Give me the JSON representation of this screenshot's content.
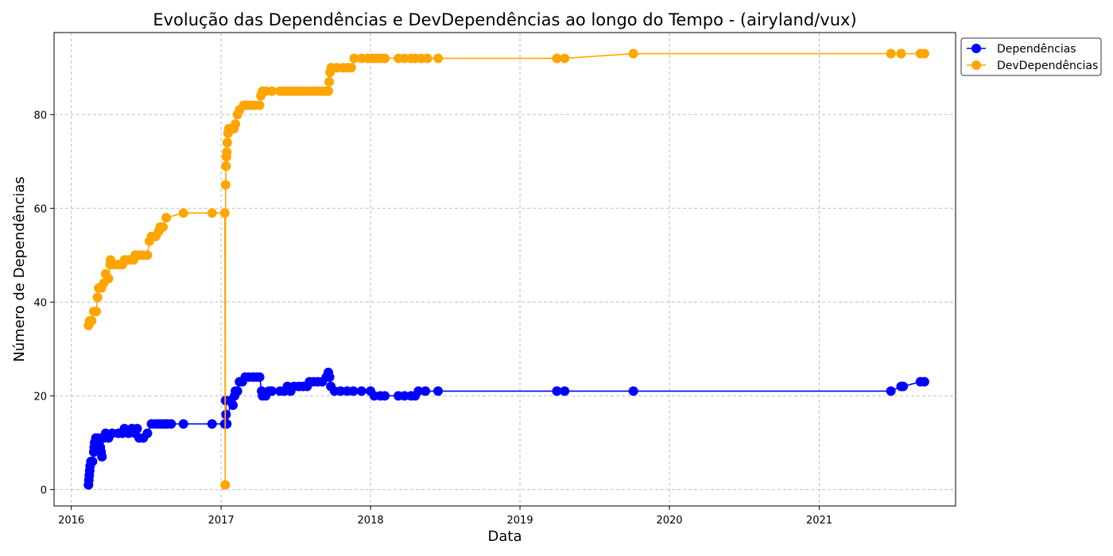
{
  "chart_data": {
    "type": "line",
    "title": "Evolução das Dependências e DevDependências ao longo do Tempo - (airyland/vux)",
    "xlabel": "Data",
    "ylabel": "Número de Dependências",
    "xlim": [
      "2015-11-20",
      "2021-11-30"
    ],
    "ylim": [
      -3.5,
      97.5
    ],
    "x_ticks": [
      "2016",
      "2017",
      "2018",
      "2019",
      "2020",
      "2021"
    ],
    "y_ticks": [
      0,
      20,
      40,
      60,
      80
    ],
    "grid": true,
    "legend": "top-right, outside plot area",
    "series": [
      {
        "name": "Dependências",
        "color": "#0000ff",
        "points": [
          [
            "2016-02-12",
            1
          ],
          [
            "2016-02-13",
            2
          ],
          [
            "2016-02-14",
            3
          ],
          [
            "2016-02-15",
            4
          ],
          [
            "2016-02-16",
            5
          ],
          [
            "2016-02-18",
            6
          ],
          [
            "2016-02-22",
            6
          ],
          [
            "2016-02-25",
            8
          ],
          [
            "2016-02-26",
            9
          ],
          [
            "2016-02-27",
            10
          ],
          [
            "2016-03-01",
            11
          ],
          [
            "2016-03-05",
            10
          ],
          [
            "2016-03-08",
            11
          ],
          [
            "2016-03-12",
            9
          ],
          [
            "2016-03-14",
            8
          ],
          [
            "2016-03-16",
            7
          ],
          [
            "2016-03-20",
            11
          ],
          [
            "2016-03-25",
            12
          ],
          [
            "2016-04-01",
            11
          ],
          [
            "2016-04-10",
            12
          ],
          [
            "2016-04-25",
            12
          ],
          [
            "2016-05-05",
            12
          ],
          [
            "2016-05-10",
            13
          ],
          [
            "2016-05-20",
            12
          ],
          [
            "2016-05-28",
            13
          ],
          [
            "2016-06-05",
            12
          ],
          [
            "2016-06-10",
            13
          ],
          [
            "2016-06-15",
            11
          ],
          [
            "2016-06-25",
            11
          ],
          [
            "2016-07-05",
            12
          ],
          [
            "2016-07-15",
            14
          ],
          [
            "2016-07-25",
            14
          ],
          [
            "2016-08-01",
            14
          ],
          [
            "2016-08-10",
            14
          ],
          [
            "2016-08-15",
            14
          ],
          [
            "2016-08-22",
            14
          ],
          [
            "2016-09-01",
            14
          ],
          [
            "2016-10-01",
            14
          ],
          [
            "2016-12-10",
            14
          ],
          [
            "2017-01-10",
            14
          ],
          [
            "2017-01-12",
            19
          ],
          [
            "2017-01-13",
            16
          ],
          [
            "2017-01-15",
            14
          ],
          [
            "2017-01-25",
            19
          ],
          [
            "2017-01-30",
            18
          ],
          [
            "2017-02-03",
            20
          ],
          [
            "2017-02-05",
            21
          ],
          [
            "2017-02-10",
            21
          ],
          [
            "2017-02-15",
            23
          ],
          [
            "2017-02-22",
            23
          ],
          [
            "2017-03-01",
            24
          ],
          [
            "2017-03-10",
            24
          ],
          [
            "2017-03-20",
            24
          ],
          [
            "2017-03-28",
            24
          ],
          [
            "2017-04-05",
            24
          ],
          [
            "2017-04-10",
            21
          ],
          [
            "2017-04-12",
            20
          ],
          [
            "2017-04-20",
            20
          ],
          [
            "2017-04-28",
            21
          ],
          [
            "2017-05-05",
            21
          ],
          [
            "2017-05-25",
            21
          ],
          [
            "2017-06-05",
            21
          ],
          [
            "2017-06-12",
            22
          ],
          [
            "2017-06-20",
            21
          ],
          [
            "2017-06-28",
            22
          ],
          [
            "2017-07-10",
            22
          ],
          [
            "2017-07-20",
            22
          ],
          [
            "2017-07-30",
            22
          ],
          [
            "2017-08-05",
            23
          ],
          [
            "2017-08-15",
            23
          ],
          [
            "2017-08-25",
            23
          ],
          [
            "2017-09-05",
            23
          ],
          [
            "2017-09-15",
            24
          ],
          [
            "2017-09-20",
            25
          ],
          [
            "2017-09-23",
            24
          ],
          [
            "2017-09-26",
            22
          ],
          [
            "2017-10-05",
            21
          ],
          [
            "2017-10-20",
            21
          ],
          [
            "2017-11-05",
            21
          ],
          [
            "2017-11-20",
            21
          ],
          [
            "2017-12-10",
            21
          ],
          [
            "2018-01-01",
            21
          ],
          [
            "2018-01-10",
            20
          ],
          [
            "2018-01-25",
            20
          ],
          [
            "2018-02-05",
            20
          ],
          [
            "2018-03-10",
            20
          ],
          [
            "2018-03-25",
            20
          ],
          [
            "2018-04-10",
            20
          ],
          [
            "2018-04-20",
            20
          ],
          [
            "2018-04-28",
            21
          ],
          [
            "2018-05-15",
            21
          ],
          [
            "2018-06-15",
            21
          ],
          [
            "2019-04-01",
            21
          ],
          [
            "2019-04-20",
            21
          ],
          [
            "2019-10-05",
            21
          ],
          [
            "2021-06-25",
            21
          ],
          [
            "2021-07-20",
            22
          ],
          [
            "2021-07-25",
            22
          ],
          [
            "2021-09-05",
            23
          ],
          [
            "2021-09-15",
            23
          ]
        ]
      },
      {
        "name": "DevDependências",
        "color": "#ffa500",
        "points": [
          [
            "2016-02-12",
            35
          ],
          [
            "2016-02-15",
            36
          ],
          [
            "2016-02-20",
            36
          ],
          [
            "2016-02-25",
            38
          ],
          [
            "2016-03-02",
            38
          ],
          [
            "2016-03-05",
            41
          ],
          [
            "2016-03-08",
            43
          ],
          [
            "2016-03-15",
            43
          ],
          [
            "2016-03-20",
            44
          ],
          [
            "2016-03-25",
            46
          ],
          [
            "2016-04-01",
            45
          ],
          [
            "2016-04-05",
            48
          ],
          [
            "2016-04-06",
            49
          ],
          [
            "2016-04-15",
            48
          ],
          [
            "2016-04-25",
            48
          ],
          [
            "2016-05-05",
            48
          ],
          [
            "2016-05-10",
            49
          ],
          [
            "2016-05-20",
            49
          ],
          [
            "2016-06-01",
            49
          ],
          [
            "2016-06-05",
            50
          ],
          [
            "2016-06-15",
            50
          ],
          [
            "2016-06-25",
            50
          ],
          [
            "2016-07-05",
            50
          ],
          [
            "2016-07-10",
            53
          ],
          [
            "2016-07-15",
            54
          ],
          [
            "2016-07-25",
            54
          ],
          [
            "2016-08-01",
            55
          ],
          [
            "2016-08-05",
            56
          ],
          [
            "2016-08-12",
            56
          ],
          [
            "2016-08-20",
            58
          ],
          [
            "2016-10-01",
            59
          ],
          [
            "2016-12-10",
            59
          ],
          [
            "2017-01-10",
            59
          ],
          [
            "2017-01-11",
            1
          ],
          [
            "2017-01-12",
            65
          ],
          [
            "2017-01-13",
            69
          ],
          [
            "2017-01-14",
            71
          ],
          [
            "2017-01-15",
            72
          ],
          [
            "2017-01-16",
            74
          ],
          [
            "2017-01-18",
            76
          ],
          [
            "2017-01-20",
            77
          ],
          [
            "2017-02-01",
            77
          ],
          [
            "2017-02-05",
            78
          ],
          [
            "2017-02-10",
            80
          ],
          [
            "2017-02-15",
            81
          ],
          [
            "2017-02-25",
            82
          ],
          [
            "2017-03-05",
            82
          ],
          [
            "2017-03-15",
            82
          ],
          [
            "2017-03-25",
            82
          ],
          [
            "2017-04-05",
            82
          ],
          [
            "2017-04-08",
            84
          ],
          [
            "2017-04-12",
            85
          ],
          [
            "2017-04-20",
            85
          ],
          [
            "2017-05-05",
            85
          ],
          [
            "2017-05-25",
            85
          ],
          [
            "2017-06-05",
            85
          ],
          [
            "2017-06-15",
            85
          ],
          [
            "2017-06-25",
            85
          ],
          [
            "2017-07-05",
            85
          ],
          [
            "2017-07-15",
            85
          ],
          [
            "2017-07-25",
            85
          ],
          [
            "2017-08-05",
            85
          ],
          [
            "2017-08-15",
            85
          ],
          [
            "2017-08-25",
            85
          ],
          [
            "2017-09-05",
            85
          ],
          [
            "2017-09-15",
            85
          ],
          [
            "2017-09-20",
            85
          ],
          [
            "2017-09-22",
            87
          ],
          [
            "2017-09-24",
            89
          ],
          [
            "2017-09-27",
            90
          ],
          [
            "2017-10-10",
            90
          ],
          [
            "2017-10-25",
            90
          ],
          [
            "2017-11-05",
            90
          ],
          [
            "2017-11-15",
            90
          ],
          [
            "2017-11-22",
            92
          ],
          [
            "2017-12-10",
            92
          ],
          [
            "2017-12-25",
            92
          ],
          [
            "2018-01-05",
            92
          ],
          [
            "2018-01-15",
            92
          ],
          [
            "2018-01-25",
            92
          ],
          [
            "2018-02-05",
            92
          ],
          [
            "2018-03-10",
            92
          ],
          [
            "2018-03-25",
            92
          ],
          [
            "2018-04-10",
            92
          ],
          [
            "2018-04-20",
            92
          ],
          [
            "2018-05-05",
            92
          ],
          [
            "2018-05-20",
            92
          ],
          [
            "2018-06-15",
            92
          ],
          [
            "2019-04-01",
            92
          ],
          [
            "2019-04-20",
            92
          ],
          [
            "2019-10-05",
            93
          ],
          [
            "2021-06-25",
            93
          ],
          [
            "2021-07-20",
            93
          ],
          [
            "2021-09-05",
            93
          ],
          [
            "2021-09-15",
            93
          ]
        ]
      }
    ]
  }
}
